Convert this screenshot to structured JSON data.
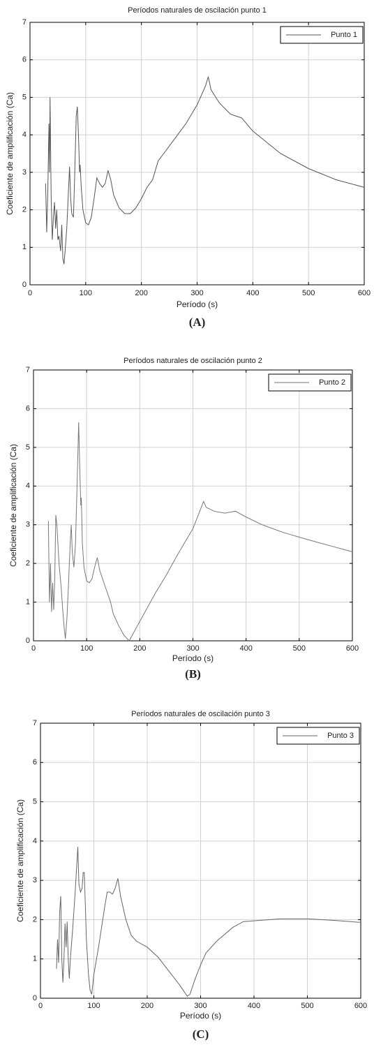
{
  "chart_data": [
    {
      "type": "line",
      "title": "Períodos naturales de oscilación punto 1",
      "xlabel": "Período (s)",
      "ylabel": "Coeficiente de amplificación (Ca)",
      "caption": "(A)",
      "x": [
        28,
        30,
        32,
        34,
        35,
        36,
        38,
        40,
        42,
        44,
        46,
        48,
        50,
        52,
        55,
        57,
        59,
        61,
        63,
        66,
        69,
        71,
        73,
        75,
        78,
        80,
        83,
        85,
        87,
        89,
        90,
        92,
        95,
        100,
        105,
        110,
        115,
        120,
        125,
        130,
        135,
        140,
        145,
        150,
        160,
        170,
        180,
        190,
        200,
        210,
        220,
        230,
        240,
        260,
        280,
        300,
        315,
        320,
        325,
        340,
        360,
        380,
        400,
        450,
        500,
        550,
        600
      ],
      "series": [
        {
          "name": "Punto 1",
          "color": "#555555",
          "values": [
            2.7,
            1.4,
            2.5,
            4.3,
            3.0,
            5.0,
            2.3,
            1.2,
            1.8,
            2.2,
            1.5,
            2.0,
            1.2,
            1.3,
            0.9,
            1.6,
            0.7,
            0.55,
            0.9,
            1.5,
            2.5,
            3.15,
            2.3,
            1.9,
            1.8,
            2.8,
            4.5,
            4.75,
            4.0,
            3.0,
            3.2,
            2.6,
            2.0,
            1.65,
            1.6,
            1.8,
            2.3,
            2.85,
            2.7,
            2.6,
            2.7,
            3.05,
            2.8,
            2.4,
            2.05,
            1.9,
            1.9,
            2.05,
            2.3,
            2.6,
            2.8,
            3.3,
            3.5,
            3.9,
            4.3,
            4.8,
            5.3,
            5.55,
            5.2,
            4.85,
            4.55,
            4.45,
            4.1,
            3.5,
            3.1,
            2.8,
            2.6
          ]
        }
      ],
      "xlim": [
        0,
        600
      ],
      "ylim": [
        0,
        7
      ],
      "xticks": [
        0,
        100,
        200,
        300,
        400,
        500,
        600
      ],
      "yticks": [
        0,
        1,
        2,
        3,
        4,
        5,
        6,
        7
      ],
      "grid": true,
      "legend": "upper right"
    },
    {
      "type": "line",
      "title": "Períodos naturales de oscilación punto 2",
      "xlabel": "Período (s)",
      "ylabel": "Coeficiente de amplificación (Ca)",
      "caption": "(B)",
      "x": [
        28,
        30,
        32,
        34,
        36,
        38,
        40,
        42,
        44,
        46,
        48,
        52,
        55,
        58,
        60,
        63,
        66,
        69,
        71,
        73,
        76,
        79,
        82,
        85,
        87,
        89,
        90,
        92,
        95,
        100,
        105,
        110,
        115,
        120,
        125,
        130,
        140,
        145,
        150,
        160,
        170,
        180,
        190,
        200,
        220,
        230,
        250,
        270,
        300,
        320,
        325,
        340,
        360,
        380,
        400,
        430,
        470,
        520,
        560,
        600
      ],
      "series": [
        {
          "name": "Punto 2",
          "color": "#777777",
          "values": [
            3.1,
            1.0,
            2.0,
            0.75,
            1.5,
            0.8,
            1.6,
            3.25,
            3.0,
            2.5,
            2.0,
            1.4,
            0.8,
            0.3,
            0.05,
            0.6,
            1.5,
            2.5,
            3.0,
            2.3,
            1.9,
            2.5,
            4.0,
            5.65,
            4.5,
            3.5,
            3.7,
            2.5,
            1.9,
            1.55,
            1.5,
            1.6,
            1.9,
            2.15,
            1.8,
            1.6,
            1.2,
            1.0,
            0.7,
            0.4,
            0.15,
            0.0,
            0.25,
            0.5,
            1.0,
            1.25,
            1.7,
            2.2,
            2.9,
            3.6,
            3.45,
            3.35,
            3.3,
            3.35,
            3.2,
            3.0,
            2.8,
            2.6,
            2.45,
            2.3
          ]
        }
      ],
      "xlim": [
        0,
        600
      ],
      "ylim": [
        0,
        7
      ],
      "xticks": [
        0,
        100,
        200,
        300,
        400,
        500,
        600
      ],
      "yticks": [
        0,
        1,
        2,
        3,
        4,
        5,
        6,
        7
      ],
      "grid": true,
      "legend": "upper right"
    },
    {
      "type": "line",
      "title": "Períodos naturales de oscilación punto 3",
      "xlabel": "Período (s)",
      "ylabel": "Coeficiente de amplificación (Ca)",
      "caption": "(C)",
      "x": [
        30,
        32,
        34,
        36,
        38,
        40,
        42,
        44,
        46,
        48,
        50,
        52,
        54,
        56,
        60,
        65,
        70,
        72,
        75,
        78,
        80,
        82,
        84,
        86,
        90,
        93,
        96,
        100,
        110,
        120,
        125,
        130,
        135,
        140,
        145,
        150,
        160,
        170,
        180,
        200,
        220,
        240,
        260,
        275,
        280,
        290,
        300,
        310,
        330,
        360,
        380,
        400,
        450,
        500,
        550,
        600
      ],
      "series": [
        {
          "name": "Punto 3",
          "color": "#666666",
          "values": [
            0.75,
            1.5,
            0.9,
            2.2,
            2.6,
            1.0,
            0.4,
            1.0,
            1.9,
            1.3,
            1.95,
            1.0,
            0.5,
            1.0,
            1.7,
            2.7,
            3.85,
            2.9,
            2.7,
            2.8,
            3.2,
            3.2,
            2.4,
            1.5,
            0.6,
            0.2,
            0.1,
            0.6,
            1.4,
            2.3,
            2.7,
            2.7,
            2.65,
            2.8,
            3.05,
            2.6,
            2.0,
            1.6,
            1.45,
            1.3,
            1.05,
            0.7,
            0.35,
            0.05,
            0.1,
            0.5,
            0.85,
            1.15,
            1.45,
            1.8,
            1.95,
            1.97,
            2.02,
            2.02,
            1.98,
            1.93
          ]
        }
      ],
      "xlim": [
        0,
        600
      ],
      "ylim": [
        0,
        7
      ],
      "xticks": [
        0,
        100,
        200,
        300,
        400,
        500,
        600
      ],
      "yticks": [
        0,
        1,
        2,
        3,
        4,
        5,
        6,
        7
      ],
      "grid": true,
      "legend": "upper right"
    }
  ]
}
